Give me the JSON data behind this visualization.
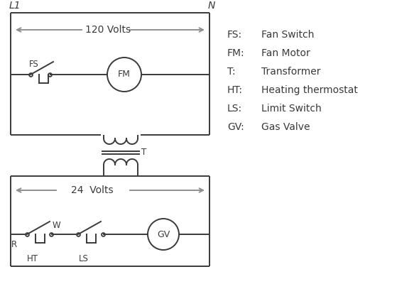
{
  "bg_color": "#ffffff",
  "line_color": "#3a3a3a",
  "arrow_color": "#909090",
  "text_color": "#000000",
  "legend": [
    [
      "FS:",
      "Fan Switch"
    ],
    [
      "FM:",
      "Fan Motor"
    ],
    [
      "T:",
      "Transformer"
    ],
    [
      "HT:",
      "Heating thermostat"
    ],
    [
      "LS:",
      "Limit Switch"
    ],
    [
      "GV:",
      "Gas Valve"
    ]
  ],
  "L1_label": "L1",
  "N_label": "N",
  "volts120": "120 Volts",
  "volts24": "24  Volts"
}
